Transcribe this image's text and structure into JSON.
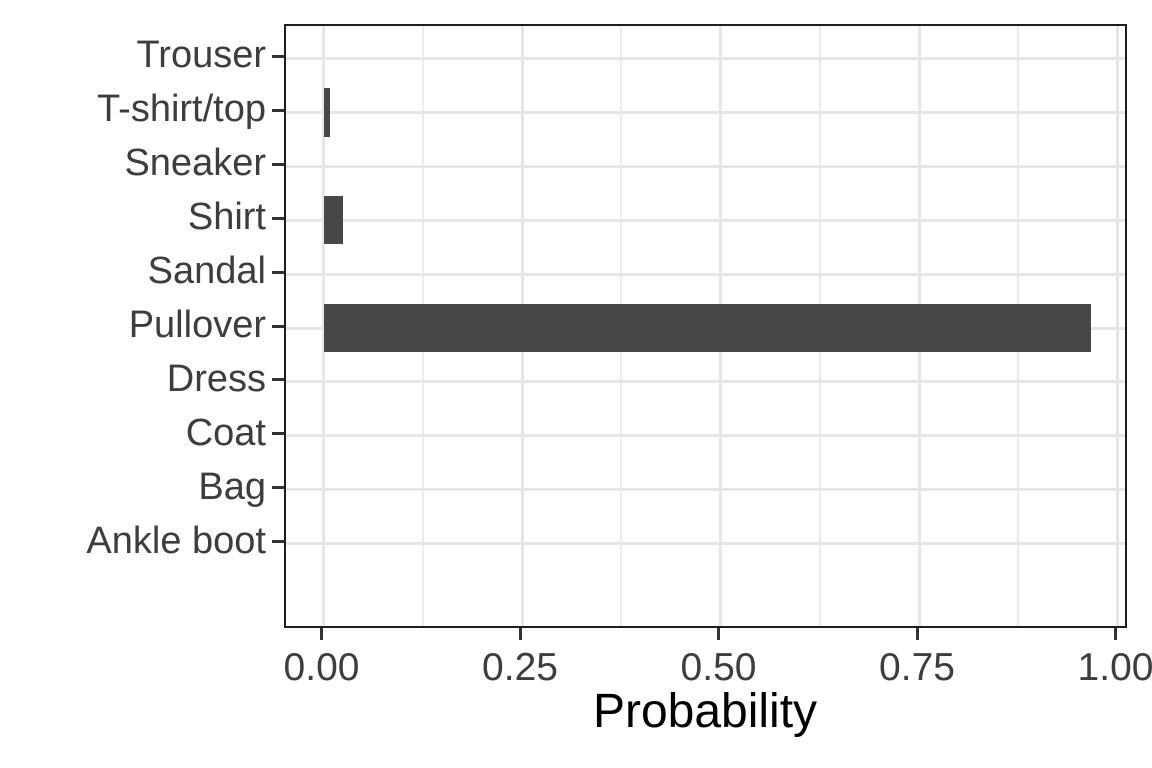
{
  "chart_data": {
    "type": "bar",
    "orientation": "horizontal",
    "title": "",
    "xlabel": "Probability",
    "ylabel": "",
    "categories_top_to_bottom": [
      "Trouser",
      "T-shirt/top",
      "Sneaker",
      "Shirt",
      "Sandal",
      "Pullover",
      "Dress",
      "Coat",
      "Bag",
      "Ankle boot"
    ],
    "values": [
      0,
      0.008,
      0,
      0.025,
      0,
      0.967,
      0,
      0,
      0,
      0
    ],
    "xlim": [
      0,
      1
    ],
    "x_major_ticks": [
      0,
      0.25,
      0.5,
      0.75,
      1.0
    ],
    "x_tick_labels": [
      "0.00",
      "0.25",
      "0.50",
      "0.75",
      "1.00"
    ],
    "x_minor_ticks": [
      0.125,
      0.375,
      0.625,
      0.875
    ],
    "grid": "vertical majors+minors, horizontal majors at categories",
    "legend": "none",
    "theme": "ggplot2 theme_bw"
  },
  "colors": {
    "background": "#FFFFFF",
    "bar_fill": "#474747",
    "panel_border": "#1F1F1F",
    "grid_major": "#E6E6E6",
    "grid_minor": "#EBEBEB",
    "tick_mark": "#333333",
    "axis_text": "#3D3D3D",
    "axis_title": "#000000"
  }
}
